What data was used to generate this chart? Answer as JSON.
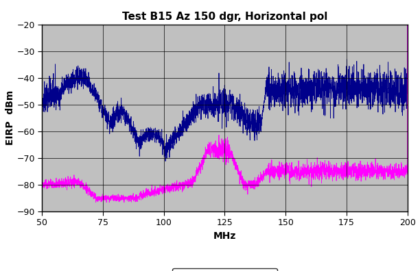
{
  "title": "Test B15 Az 150 dgr, Horizontal pol",
  "xlabel": "MHz",
  "ylabel": "EIRP  dBm",
  "xlim": [
    50,
    200
  ],
  "ylim": [
    -90,
    -20
  ],
  "yticks": [
    -90,
    -80,
    -70,
    -60,
    -50,
    -40,
    -30,
    -20
  ],
  "xticks": [
    50,
    75,
    100,
    125,
    150,
    175,
    200
  ],
  "peak_color": "#00008B",
  "rms_color": "#FF00FF",
  "bg_color": "#C0C0C0",
  "grid_color": "#000000",
  "title_fontsize": 11,
  "axis_label_fontsize": 10,
  "tick_fontsize": 9,
  "fig_width": 6.12,
  "fig_height": 3.96,
  "dpi": 100
}
